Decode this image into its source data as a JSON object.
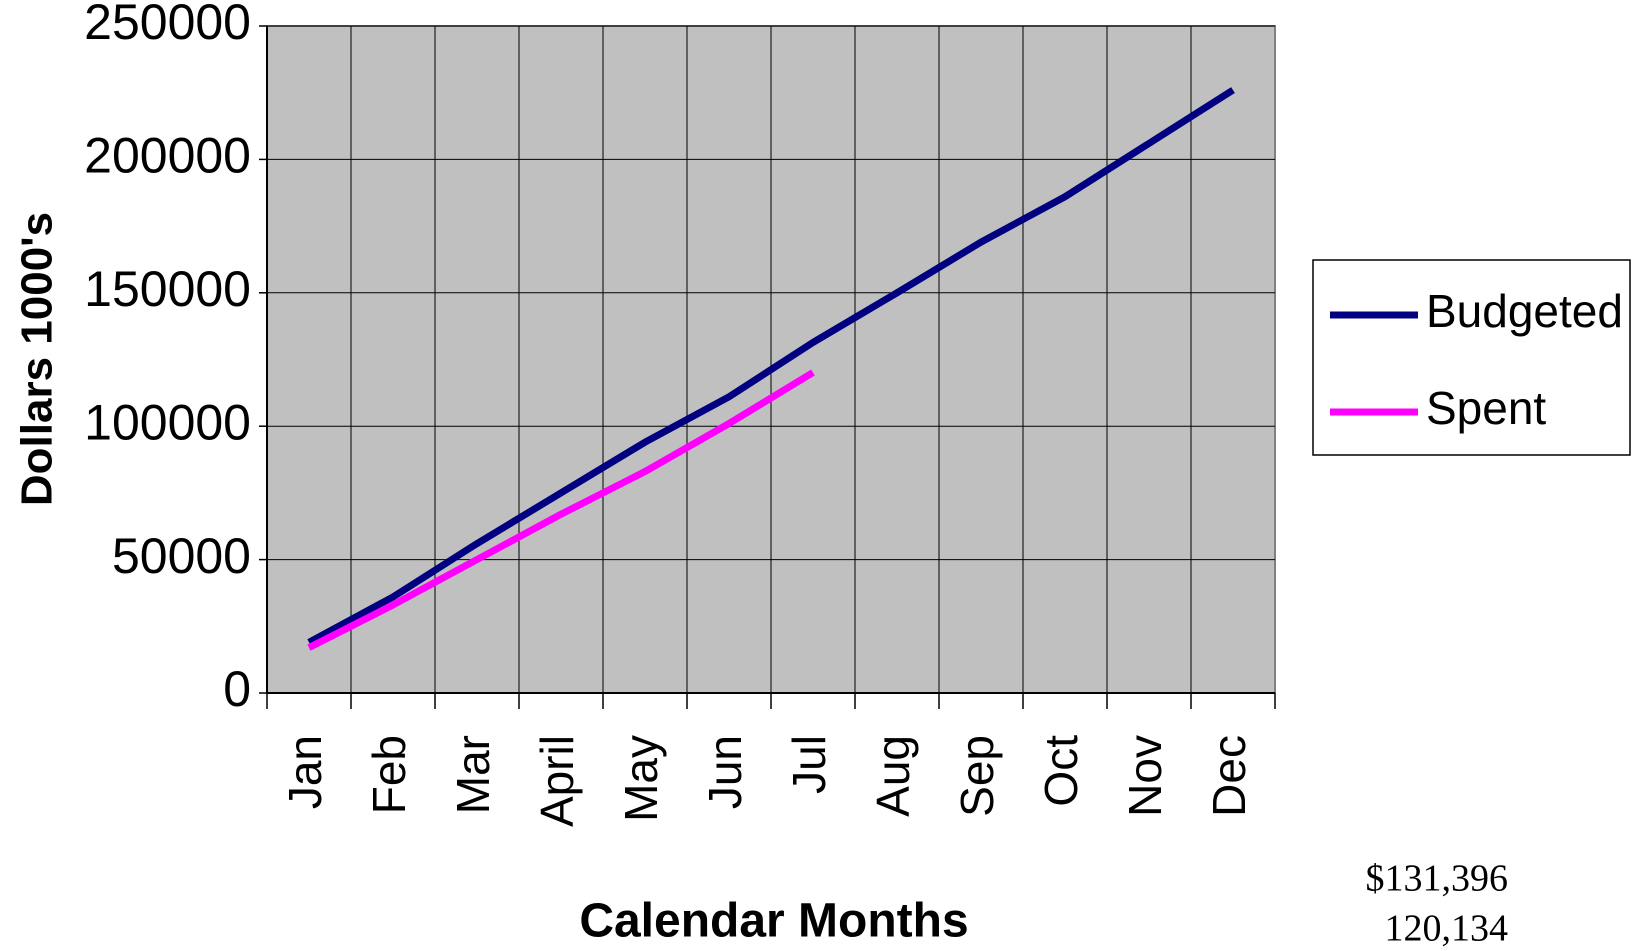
{
  "chart_data": {
    "type": "line",
    "xlabel": "Calendar Months",
    "ylabel": "Dollars 1000's",
    "categories": [
      "Jan",
      "Feb",
      "Mar",
      "April",
      "May",
      "Jun",
      "Jul",
      "Aug",
      "Sep",
      "Oct",
      "Nov",
      "Dec"
    ],
    "series": [
      {
        "name": "Budgeted",
        "color": "#000080",
        "values": [
          19000,
          36000,
          56000,
          75000,
          94000,
          111000,
          131396,
          150000,
          169000,
          186000,
          206000,
          226000
        ]
      },
      {
        "name": "Spent",
        "color": "#ff00ff",
        "values": [
          17000,
          33000,
          50000,
          67000,
          83000,
          101000,
          120134,
          null,
          null,
          null,
          null,
          null
        ]
      }
    ],
    "ylim": [
      0,
      250000
    ],
    "yticks": [
      0,
      50000,
      100000,
      150000,
      200000,
      250000
    ],
    "grid": true,
    "legend": "right",
    "annotations": [
      "$131,396",
      "120,134"
    ]
  }
}
